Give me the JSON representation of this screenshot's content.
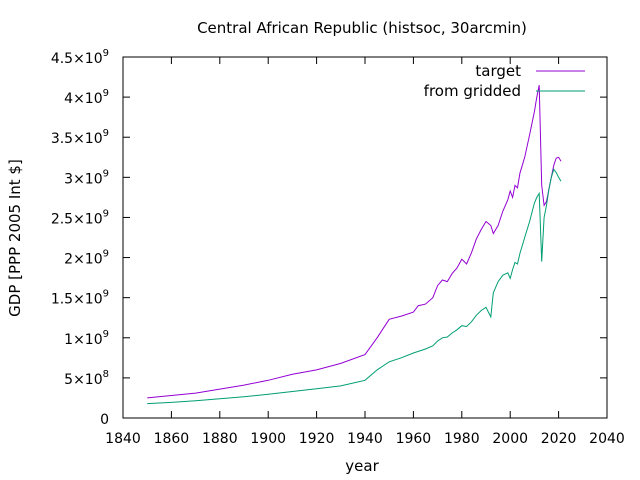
{
  "chart_data": {
    "type": "line",
    "title": "Central African Republic (histsoc, 30arcmin)",
    "xlabel": "year",
    "ylabel": "GDP [PPP 2005 Int $]",
    "xlim": [
      1840,
      2040
    ],
    "ylim": [
      0,
      4500000000
    ],
    "xticks": [
      1840,
      1860,
      1880,
      1900,
      1920,
      1940,
      1960,
      1980,
      2000,
      2020,
      2040
    ],
    "xtick_labels": [
      "1840",
      "1860",
      "1880",
      "1900",
      "1920",
      "1940",
      "1960",
      "1980",
      "2000",
      "2020",
      "2040"
    ],
    "yticks": [
      0,
      500000000,
      1000000000,
      1500000000,
      2000000000,
      2500000000,
      3000000000,
      3500000000,
      4000000000,
      4500000000
    ],
    "ytick_labels": [
      {
        "mant": "0",
        "exp": ""
      },
      {
        "mant": "5×10",
        "exp": "8"
      },
      {
        "mant": "1×10",
        "exp": "9"
      },
      {
        "mant": "1.5×10",
        "exp": "9"
      },
      {
        "mant": "2×10",
        "exp": "9"
      },
      {
        "mant": "2.5×10",
        "exp": "9"
      },
      {
        "mant": "3×10",
        "exp": "9"
      },
      {
        "mant": "3.5×10",
        "exp": "9"
      },
      {
        "mant": "4×10",
        "exp": "9"
      },
      {
        "mant": "4.5×10",
        "exp": "9"
      }
    ],
    "legend_position": "top-right",
    "grid": false,
    "series": [
      {
        "name": "target",
        "color": "#9400d3",
        "points": [
          [
            1850,
            250000000
          ],
          [
            1860,
            280000000
          ],
          [
            1870,
            310000000
          ],
          [
            1880,
            360000000
          ],
          [
            1890,
            410000000
          ],
          [
            1900,
            470000000
          ],
          [
            1910,
            545000000
          ],
          [
            1920,
            600000000
          ],
          [
            1930,
            680000000
          ],
          [
            1940,
            790000000
          ],
          [
            1945,
            1000000000
          ],
          [
            1950,
            1230000000
          ],
          [
            1955,
            1270000000
          ],
          [
            1960,
            1320000000
          ],
          [
            1962,
            1400000000
          ],
          [
            1965,
            1420000000
          ],
          [
            1968,
            1500000000
          ],
          [
            1970,
            1650000000
          ],
          [
            1972,
            1720000000
          ],
          [
            1974,
            1700000000
          ],
          [
            1976,
            1800000000
          ],
          [
            1978,
            1870000000
          ],
          [
            1980,
            1980000000
          ],
          [
            1982,
            1920000000
          ],
          [
            1984,
            2060000000
          ],
          [
            1986,
            2230000000
          ],
          [
            1988,
            2350000000
          ],
          [
            1990,
            2450000000
          ],
          [
            1992,
            2400000000
          ],
          [
            1993,
            2300000000
          ],
          [
            1995,
            2400000000
          ],
          [
            1997,
            2580000000
          ],
          [
            1999,
            2720000000
          ],
          [
            2000,
            2830000000
          ],
          [
            2001,
            2750000000
          ],
          [
            2002,
            2900000000
          ],
          [
            2003,
            2870000000
          ],
          [
            2004,
            3050000000
          ],
          [
            2006,
            3250000000
          ],
          [
            2008,
            3530000000
          ],
          [
            2010,
            3820000000
          ],
          [
            2011,
            4000000000
          ],
          [
            2012,
            4150000000
          ],
          [
            2013,
            2900000000
          ],
          [
            2014,
            2650000000
          ],
          [
            2015,
            2700000000
          ],
          [
            2016,
            2850000000
          ],
          [
            2017,
            3000000000
          ],
          [
            2018,
            3150000000
          ],
          [
            2019,
            3240000000
          ],
          [
            2020,
            3250000000
          ],
          [
            2021,
            3200000000
          ]
        ]
      },
      {
        "name": "from gridded",
        "color": "#009e73",
        "points": [
          [
            1850,
            180000000
          ],
          [
            1860,
            195000000
          ],
          [
            1870,
            215000000
          ],
          [
            1880,
            240000000
          ],
          [
            1890,
            265000000
          ],
          [
            1900,
            295000000
          ],
          [
            1910,
            330000000
          ],
          [
            1920,
            365000000
          ],
          [
            1930,
            400000000
          ],
          [
            1940,
            470000000
          ],
          [
            1945,
            600000000
          ],
          [
            1950,
            700000000
          ],
          [
            1955,
            750000000
          ],
          [
            1960,
            810000000
          ],
          [
            1965,
            860000000
          ],
          [
            1968,
            900000000
          ],
          [
            1970,
            960000000
          ],
          [
            1972,
            1000000000
          ],
          [
            1974,
            1010000000
          ],
          [
            1976,
            1060000000
          ],
          [
            1978,
            1100000000
          ],
          [
            1980,
            1150000000
          ],
          [
            1982,
            1140000000
          ],
          [
            1984,
            1200000000
          ],
          [
            1986,
            1280000000
          ],
          [
            1988,
            1340000000
          ],
          [
            1990,
            1380000000
          ],
          [
            1991,
            1320000000
          ],
          [
            1992,
            1260000000
          ],
          [
            1993,
            1560000000
          ],
          [
            1995,
            1700000000
          ],
          [
            1997,
            1780000000
          ],
          [
            1999,
            1810000000
          ],
          [
            2000,
            1740000000
          ],
          [
            2001,
            1850000000
          ],
          [
            2002,
            1940000000
          ],
          [
            2003,
            1920000000
          ],
          [
            2004,
            2050000000
          ],
          [
            2006,
            2250000000
          ],
          [
            2008,
            2450000000
          ],
          [
            2010,
            2680000000
          ],
          [
            2011,
            2750000000
          ],
          [
            2012,
            2800000000
          ],
          [
            2013,
            1950000000
          ],
          [
            2014,
            2500000000
          ],
          [
            2015,
            2650000000
          ],
          [
            2016,
            2850000000
          ],
          [
            2017,
            3000000000
          ],
          [
            2018,
            3100000000
          ],
          [
            2019,
            3060000000
          ],
          [
            2020,
            3000000000
          ],
          [
            2021,
            2950000000
          ]
        ]
      }
    ]
  }
}
